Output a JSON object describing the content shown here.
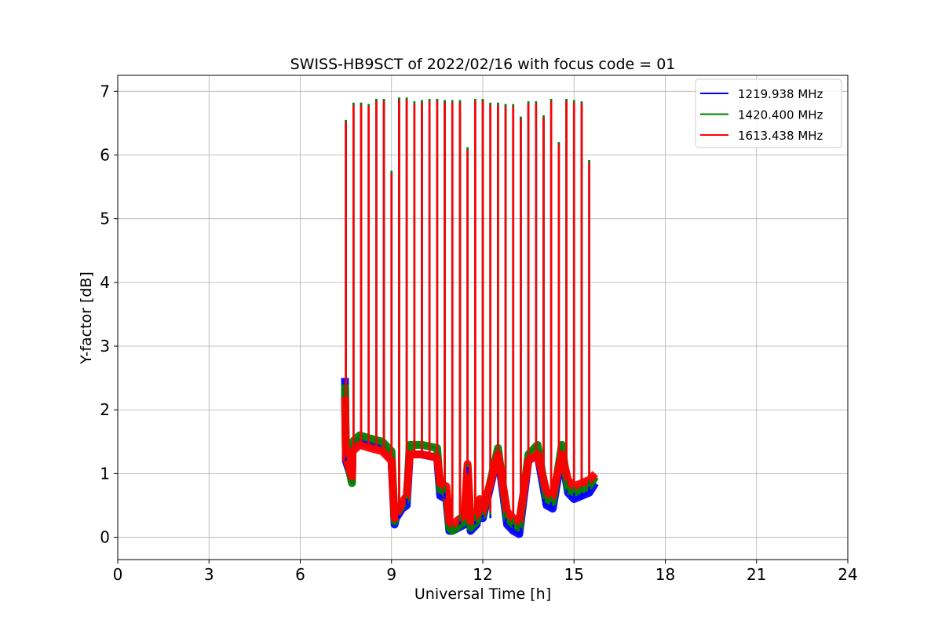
{
  "chart_data": {
    "type": "line",
    "title": "SWISS-HB9SCT of 2022/02/16 with focus code = 01",
    "xlabel": "Universal Time [h]",
    "ylabel": "Y-factor [dB]",
    "xlim": [
      0,
      24
    ],
    "ylim": [
      -0.35,
      7.25
    ],
    "xticks": [
      0,
      3,
      6,
      9,
      12,
      15,
      18,
      21,
      24
    ],
    "yticks": [
      0,
      1,
      2,
      3,
      4,
      5,
      6,
      7
    ],
    "grid": true,
    "legend_position": "top-right",
    "series": [
      {
        "name": "1219.938 MHz",
        "color": "#0000ff",
        "x": [
          7.47,
          7.5,
          7.7,
          7.72,
          7.95,
          8.3,
          8.7,
          8.8,
          9.0,
          9.1,
          9.15,
          9.35,
          9.5,
          9.6,
          10.0,
          10.5,
          10.6,
          10.8,
          10.9,
          11.0,
          11.4,
          11.5,
          11.6,
          11.8,
          11.9,
          12.0,
          12.5,
          12.8,
          13.0,
          13.2,
          13.5,
          13.8,
          14.1,
          14.3,
          14.6,
          14.8,
          15.0,
          15.5,
          15.7
        ],
        "y": [
          2.5,
          1.2,
          0.9,
          1.4,
          1.5,
          1.45,
          1.4,
          1.35,
          1.2,
          0.2,
          0.3,
          0.45,
          0.5,
          1.3,
          1.3,
          1.25,
          0.65,
          0.6,
          0.1,
          0.1,
          0.2,
          1.0,
          0.1,
          0.2,
          0.5,
          0.3,
          1.3,
          0.2,
          0.1,
          0.05,
          1.2,
          1.3,
          0.5,
          0.45,
          1.3,
          0.7,
          0.6,
          0.7,
          0.85
        ]
      },
      {
        "name": "1420.400 MHz",
        "color": "#008000",
        "x": [
          7.47,
          7.5,
          7.7,
          7.72,
          7.95,
          8.3,
          8.7,
          8.8,
          9.0,
          9.1,
          9.15,
          9.35,
          9.5,
          9.6,
          10.0,
          10.5,
          10.6,
          10.8,
          10.9,
          11.0,
          11.4,
          11.5,
          11.6,
          11.8,
          11.9,
          12.0,
          12.5,
          12.8,
          13.0,
          13.2,
          13.5,
          13.8,
          14.1,
          14.3,
          14.6,
          14.8,
          15.0,
          15.5,
          15.7
        ],
        "y": [
          2.4,
          1.3,
          0.85,
          1.5,
          1.6,
          1.55,
          1.5,
          1.45,
          1.35,
          0.25,
          0.35,
          0.5,
          0.6,
          1.45,
          1.45,
          1.4,
          0.75,
          0.7,
          0.15,
          0.1,
          0.25,
          1.1,
          0.15,
          0.25,
          0.55,
          0.35,
          1.4,
          0.3,
          0.2,
          0.15,
          1.3,
          1.45,
          0.6,
          0.55,
          1.45,
          0.75,
          0.7,
          0.8,
          0.95
        ]
      },
      {
        "name": "1613.438 MHz",
        "color": "#ff0000",
        "x": [
          7.47,
          7.5,
          7.7,
          7.72,
          7.95,
          8.3,
          8.7,
          8.8,
          9.0,
          9.1,
          9.15,
          9.35,
          9.5,
          9.6,
          10.0,
          10.5,
          10.6,
          10.8,
          10.9,
          11.0,
          11.4,
          11.5,
          11.6,
          11.8,
          11.9,
          12.0,
          12.5,
          12.8,
          13.0,
          13.2,
          13.5,
          13.8,
          14.1,
          14.3,
          14.6,
          14.8,
          15.0,
          15.5,
          15.7
        ],
        "y": [
          2.2,
          1.25,
          0.95,
          1.35,
          1.45,
          1.4,
          1.35,
          1.3,
          1.2,
          0.3,
          0.35,
          0.55,
          0.65,
          1.3,
          1.3,
          1.25,
          0.85,
          0.8,
          0.25,
          0.2,
          0.35,
          1.15,
          0.25,
          0.35,
          0.6,
          0.4,
          1.3,
          0.4,
          0.3,
          0.25,
          1.2,
          1.3,
          0.7,
          0.65,
          1.3,
          0.9,
          0.8,
          0.9,
          1.0
        ]
      }
    ],
    "spikes": {
      "x": [
        7.5,
        7.75,
        8.0,
        8.25,
        8.5,
        8.75,
        9.0,
        9.25,
        9.5,
        9.75,
        10.0,
        10.25,
        10.5,
        10.75,
        11.0,
        11.25,
        11.5,
        11.75,
        12.0,
        12.25,
        12.5,
        12.75,
        13.0,
        13.25,
        13.5,
        13.75,
        14.0,
        14.25,
        14.5,
        14.75,
        15.0,
        15.25,
        15.5
      ],
      "y": [
        6.55,
        6.82,
        6.82,
        6.8,
        6.88,
        6.88,
        5.75,
        6.9,
        6.9,
        6.84,
        6.86,
        6.88,
        6.88,
        6.86,
        6.86,
        6.86,
        6.12,
        6.88,
        6.88,
        6.82,
        6.82,
        6.8,
        6.8,
        6.6,
        6.84,
        6.84,
        6.62,
        6.88,
        6.2,
        6.88,
        6.86,
        6.84,
        5.92
      ]
    }
  }
}
